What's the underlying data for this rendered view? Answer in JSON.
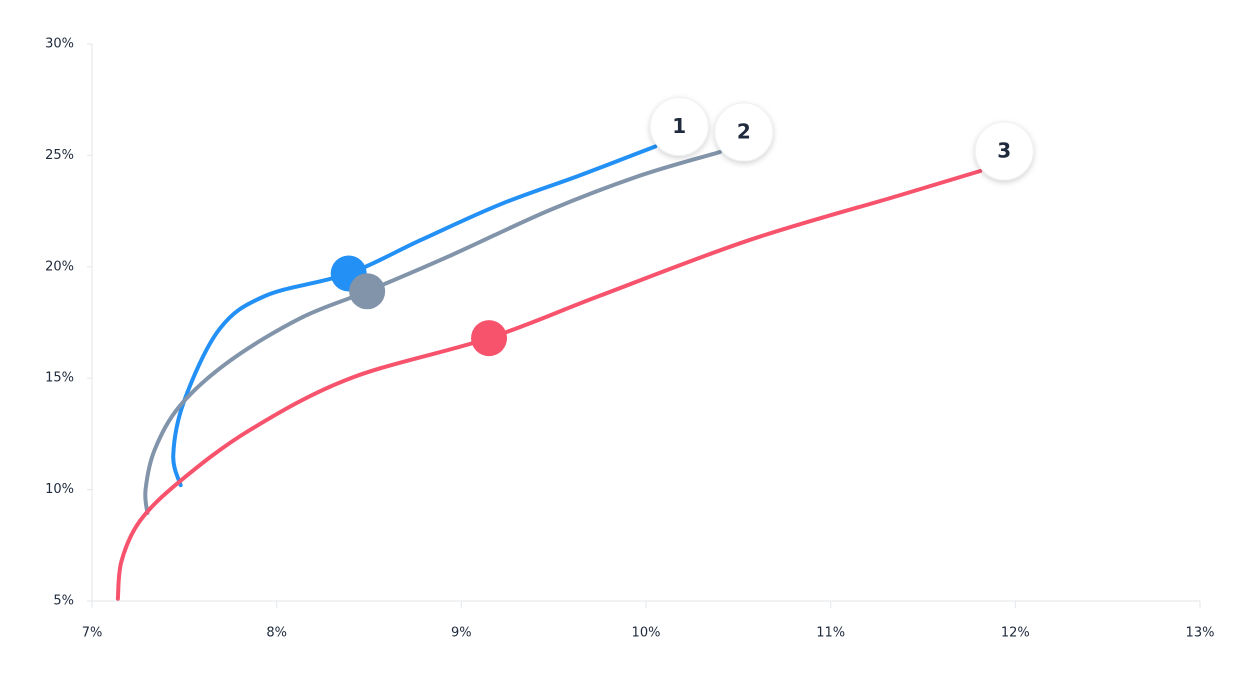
{
  "chart_data": {
    "type": "line",
    "xlim": [
      7,
      13
    ],
    "xticks": [
      {
        "value": 7,
        "label": "7%"
      },
      {
        "value": 8,
        "label": "8%"
      },
      {
        "value": 9,
        "label": "9%"
      },
      {
        "value": 10,
        "label": "10%"
      },
      {
        "value": 11,
        "label": "11%"
      },
      {
        "value": 12,
        "label": "12%"
      },
      {
        "value": 13,
        "label": "13%"
      }
    ],
    "ylim": [
      5,
      30
    ],
    "yticks": [
      {
        "value": 5,
        "label": "5%"
      },
      {
        "value": 10,
        "label": "10%"
      },
      {
        "value": 15,
        "label": "15%"
      },
      {
        "value": 20,
        "label": "20%"
      },
      {
        "value": 25,
        "label": "25%"
      },
      {
        "value": 30,
        "label": "30%"
      }
    ],
    "series": [
      {
        "name": "1",
        "color": "#2290f5",
        "x": [
          7.48,
          7.44,
          7.5,
          7.69,
          7.94,
          8.39,
          8.78,
          9.21,
          9.64,
          10.05
        ],
        "values": [
          10.2,
          11.55,
          14.0,
          17.2,
          18.7,
          19.7,
          21.2,
          22.8,
          24.1,
          25.4
        ],
        "marker": {
          "x": 8.39,
          "y": 19.7
        }
      },
      {
        "name": "2",
        "color": "#8294aa",
        "x": [
          7.3,
          7.29,
          7.34,
          7.48,
          7.75,
          8.13,
          8.49,
          8.94,
          9.48,
          9.97,
          10.4
        ],
        "values": [
          8.95,
          10.0,
          11.8,
          13.8,
          15.8,
          17.7,
          18.9,
          20.5,
          22.55,
          24.1,
          25.15
        ],
        "marker": {
          "x": 8.49,
          "y": 18.9
        }
      },
      {
        "name": "3",
        "color": "#f7536d",
        "x": [
          7.14,
          7.16,
          7.26,
          7.48,
          7.86,
          8.4,
          9.15,
          9.75,
          10.56,
          11.37,
          11.81
        ],
        "values": [
          5.1,
          6.8,
          8.6,
          10.4,
          12.7,
          15.0,
          16.8,
          18.7,
          21.2,
          23.2,
          24.3
        ],
        "marker": {
          "x": 9.15,
          "y": 16.8
        }
      }
    ]
  }
}
